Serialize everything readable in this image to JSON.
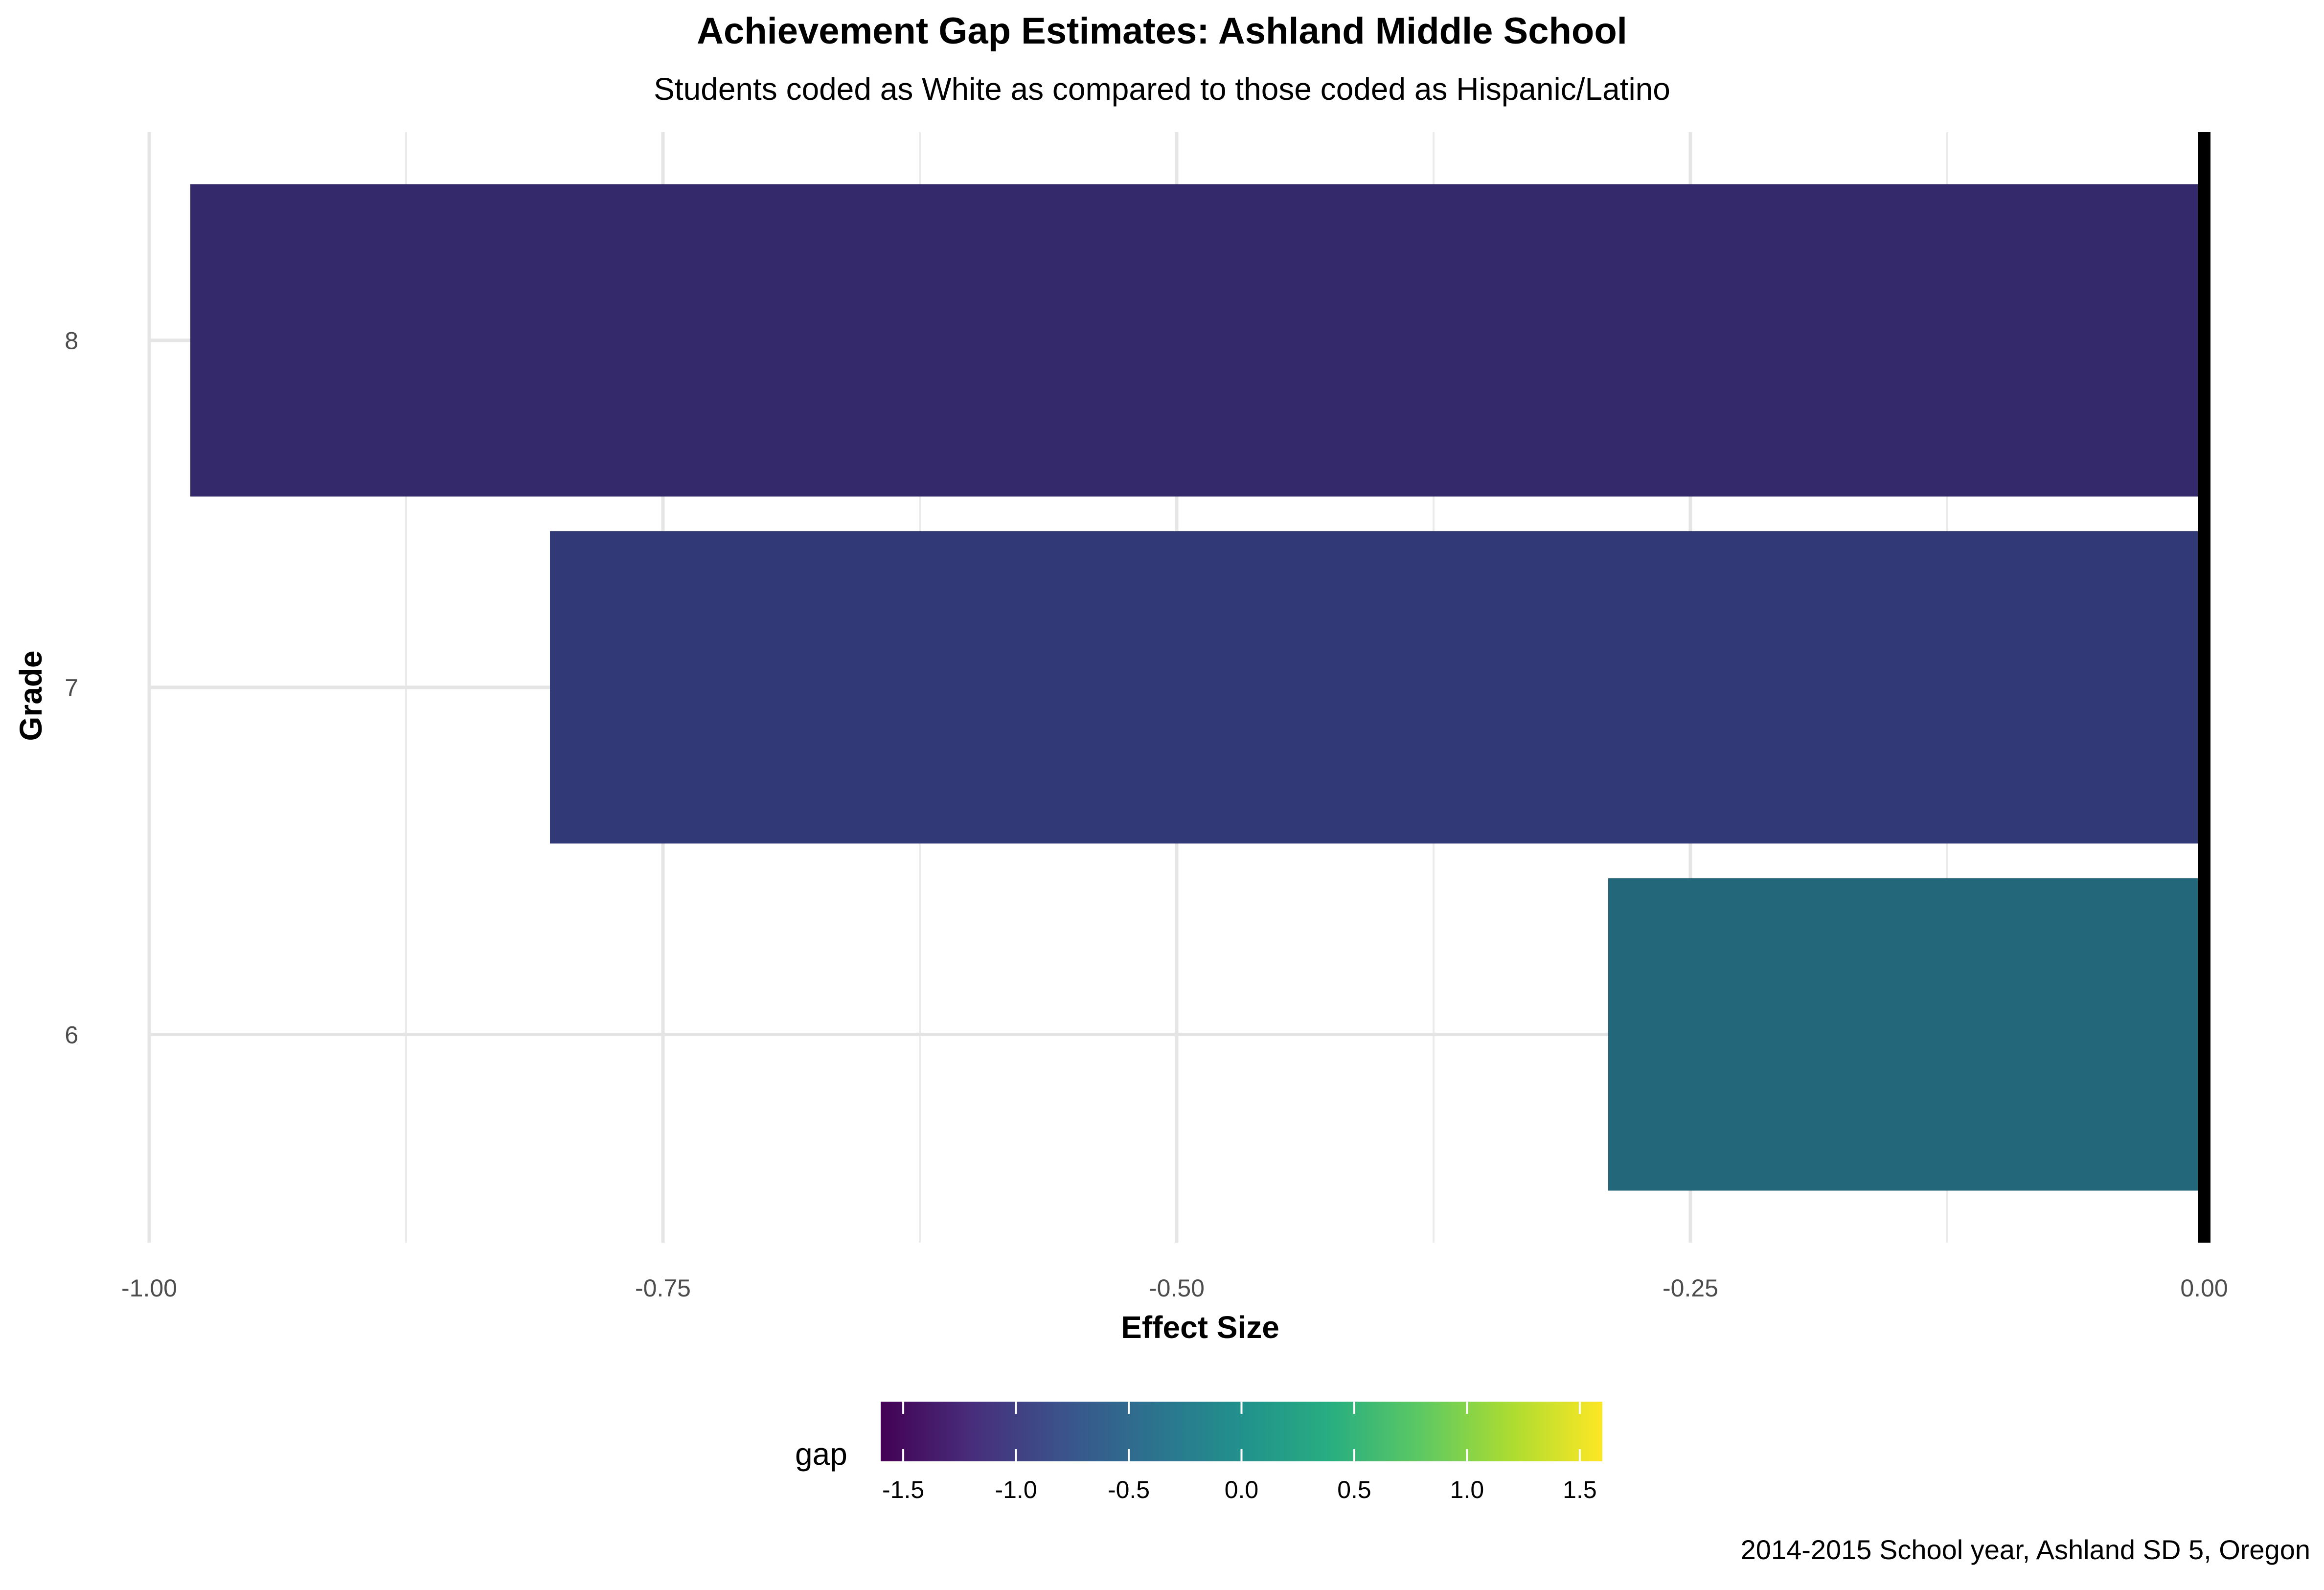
{
  "chart_data": {
    "type": "bar",
    "orientation": "horizontal",
    "title": "Achievement Gap Estimates: Ashland Middle School",
    "subtitle": "Students coded as White as compared to those coded as Hispanic/Latino",
    "caption": "2014-2015 School year, Ashland SD 5, Oregon",
    "xlabel": "Effect Size",
    "ylabel": "Grade",
    "categories": [
      "6",
      "7",
      "8"
    ],
    "values": [
      -0.29,
      -0.805,
      -0.98
    ],
    "xlim": [
      -1.0,
      0.0
    ],
    "x_ticks": [
      "-1.00",
      "-0.75",
      "-0.50",
      "-0.25",
      "0.00"
    ],
    "x_tick_values": [
      -1.0,
      -0.75,
      -0.5,
      -0.25,
      0.0
    ],
    "reference_line_x": 0.0,
    "grid": true,
    "legend": {
      "title": "gap",
      "type": "colorbar",
      "position": "bottom",
      "range": [
        -1.6,
        1.6
      ],
      "ticks": [
        "-1.5",
        "-1.0",
        "-0.5",
        "0.0",
        "0.5",
        "1.0",
        "1.5"
      ],
      "tick_values": [
        -1.5,
        -1.0,
        -0.5,
        0.0,
        0.5,
        1.0,
        1.5
      ],
      "palette": "viridis"
    },
    "bar_colors": [
      "#23677B",
      "#313A76",
      "#33296B"
    ]
  }
}
